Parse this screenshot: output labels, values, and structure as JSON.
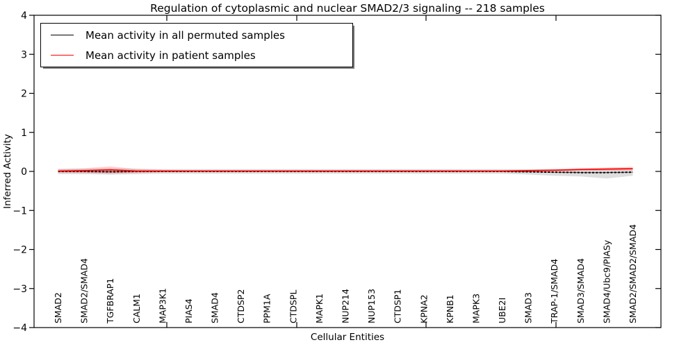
{
  "chart_data": {
    "type": "line",
    "title": "Regulation of cytoplasmic and nuclear SMAD2/3 signaling -- 218 samples",
    "xlabel": "Cellular Entities",
    "ylabel": "Inferred Activity",
    "ylim": [
      -4,
      4
    ],
    "ytick_labels": [
      "4",
      "3",
      "2",
      "1",
      "0",
      "−1",
      "−2",
      "−3",
      "−4"
    ],
    "ytick_values": [
      4,
      3,
      2,
      1,
      0,
      -1,
      -2,
      -3,
      -4
    ],
    "grid": false,
    "legend_position": "upper left",
    "categories": [
      "SMAD2",
      "SMAD2/SMAD4",
      "TGFBRAP1",
      "CALM1",
      "MAP3K1",
      "PIAS4",
      "SMAD4",
      "CTDSP2",
      "PPM1A",
      "CTDSPL",
      "MAPK1",
      "NUP214",
      "NUP153",
      "CTDSP1",
      "KPNA2",
      "KPNB1",
      "MAPK3",
      "UBE2I",
      "SMAD3",
      "TRAP-1/SMAD4",
      "SMAD3/SMAD4",
      "SMAD4/Ubc9/PIASy",
      "SMAD2/SMAD2/SMAD4"
    ],
    "series": [
      {
        "name": "Mean activity in all permuted samples",
        "color": "#000000",
        "style": "dashed",
        "values": [
          0,
          0,
          -0.01,
          0,
          0,
          0,
          0,
          0,
          0,
          0,
          0,
          0,
          0,
          0,
          0,
          0,
          0,
          0,
          -0.01,
          -0.02,
          -0.03,
          -0.03,
          -0.02
        ]
      },
      {
        "name": "Mean activity in patient samples",
        "color": "#ff0000",
        "style": "solid",
        "values": [
          0.01,
          0.02,
          0.04,
          0.01,
          0.01,
          0.01,
          0.01,
          0.01,
          0.01,
          0.01,
          0.01,
          0.01,
          0.01,
          0.01,
          0.01,
          0.01,
          0.01,
          0.01,
          0.02,
          0.03,
          0.05,
          0.06,
          0.07
        ]
      }
    ],
    "bands": [
      {
        "name": "permuted-samples-std-band",
        "color": "#888888",
        "opacity": 0.28,
        "upper": [
          0.07,
          0.07,
          0.08,
          0.07,
          0.06,
          0.06,
          0.06,
          0.06,
          0.06,
          0.06,
          0.06,
          0.06,
          0.06,
          0.06,
          0.06,
          0.06,
          0.06,
          0.06,
          0.06,
          0.06,
          0.06,
          0.07,
          0.06
        ],
        "lower": [
          -0.07,
          -0.07,
          -0.08,
          -0.07,
          -0.06,
          -0.06,
          -0.06,
          -0.06,
          -0.06,
          -0.06,
          -0.06,
          -0.06,
          -0.06,
          -0.06,
          -0.06,
          -0.06,
          -0.06,
          -0.06,
          -0.08,
          -0.11,
          -0.13,
          -0.18,
          -0.11
        ]
      },
      {
        "name": "patient-samples-std-band",
        "color": "#ff3333",
        "opacity": 0.22,
        "upper": [
          0.05,
          0.08,
          0.13,
          0.06,
          0.04,
          0.03,
          0.03,
          0.03,
          0.03,
          0.03,
          0.03,
          0.03,
          0.03,
          0.03,
          0.03,
          0.03,
          0.03,
          0.03,
          0.04,
          0.06,
          0.08,
          0.1,
          0.12
        ],
        "lower": [
          -0.03,
          -0.04,
          -0.06,
          -0.04,
          -0.02,
          -0.01,
          -0.01,
          -0.01,
          -0.01,
          -0.01,
          -0.01,
          -0.01,
          -0.01,
          -0.01,
          -0.01,
          -0.01,
          -0.01,
          -0.01,
          0.0,
          0.0,
          0.01,
          0.02,
          0.02
        ]
      }
    ]
  }
}
